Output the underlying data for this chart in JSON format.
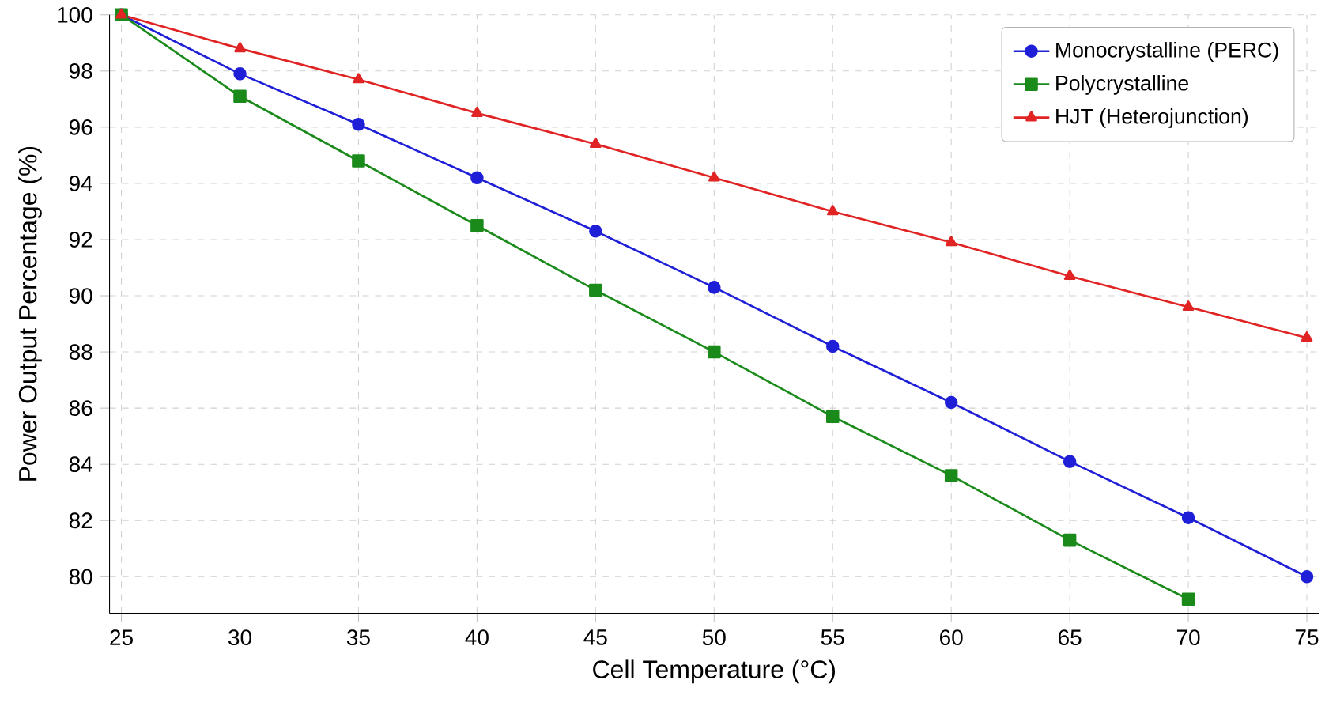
{
  "chart_data": {
    "type": "line",
    "xlabel": "Cell Temperature (°C)",
    "ylabel": "Power Output Percentage (%)",
    "x": [
      25,
      30,
      35,
      40,
      45,
      50,
      55,
      60,
      65,
      70,
      75
    ],
    "series": [
      {
        "name": "Monocrystalline (PERC)",
        "color": "#1f1fd8",
        "marker": "circle",
        "values": [
          100,
          97.9,
          96.1,
          94.2,
          92.3,
          90.3,
          88.2,
          86.2,
          84.1,
          82.1,
          80.0
        ]
      },
      {
        "name": "Polycrystalline",
        "color": "#1a8a1a",
        "marker": "square",
        "values": [
          100,
          97.1,
          94.8,
          92.5,
          90.2,
          88.0,
          85.7,
          83.6,
          81.3,
          79.2,
          null
        ]
      },
      {
        "name": "HJT (Heterojunction)",
        "color": "#e02424",
        "marker": "triangle",
        "values": [
          100,
          98.8,
          97.7,
          96.5,
          95.4,
          94.2,
          93.0,
          91.9,
          90.7,
          89.6,
          88.5
        ]
      }
    ],
    "xlim": [
      24.5,
      75.5
    ],
    "ylim": [
      78.7,
      100
    ],
    "xticks": [
      25,
      30,
      35,
      40,
      45,
      50,
      55,
      60,
      65,
      70,
      75
    ],
    "yticks": [
      80,
      82,
      84,
      86,
      88,
      90,
      92,
      94,
      96,
      98,
      100
    ],
    "grid": true,
    "legend": "top right",
    "line_style": "solid"
  }
}
